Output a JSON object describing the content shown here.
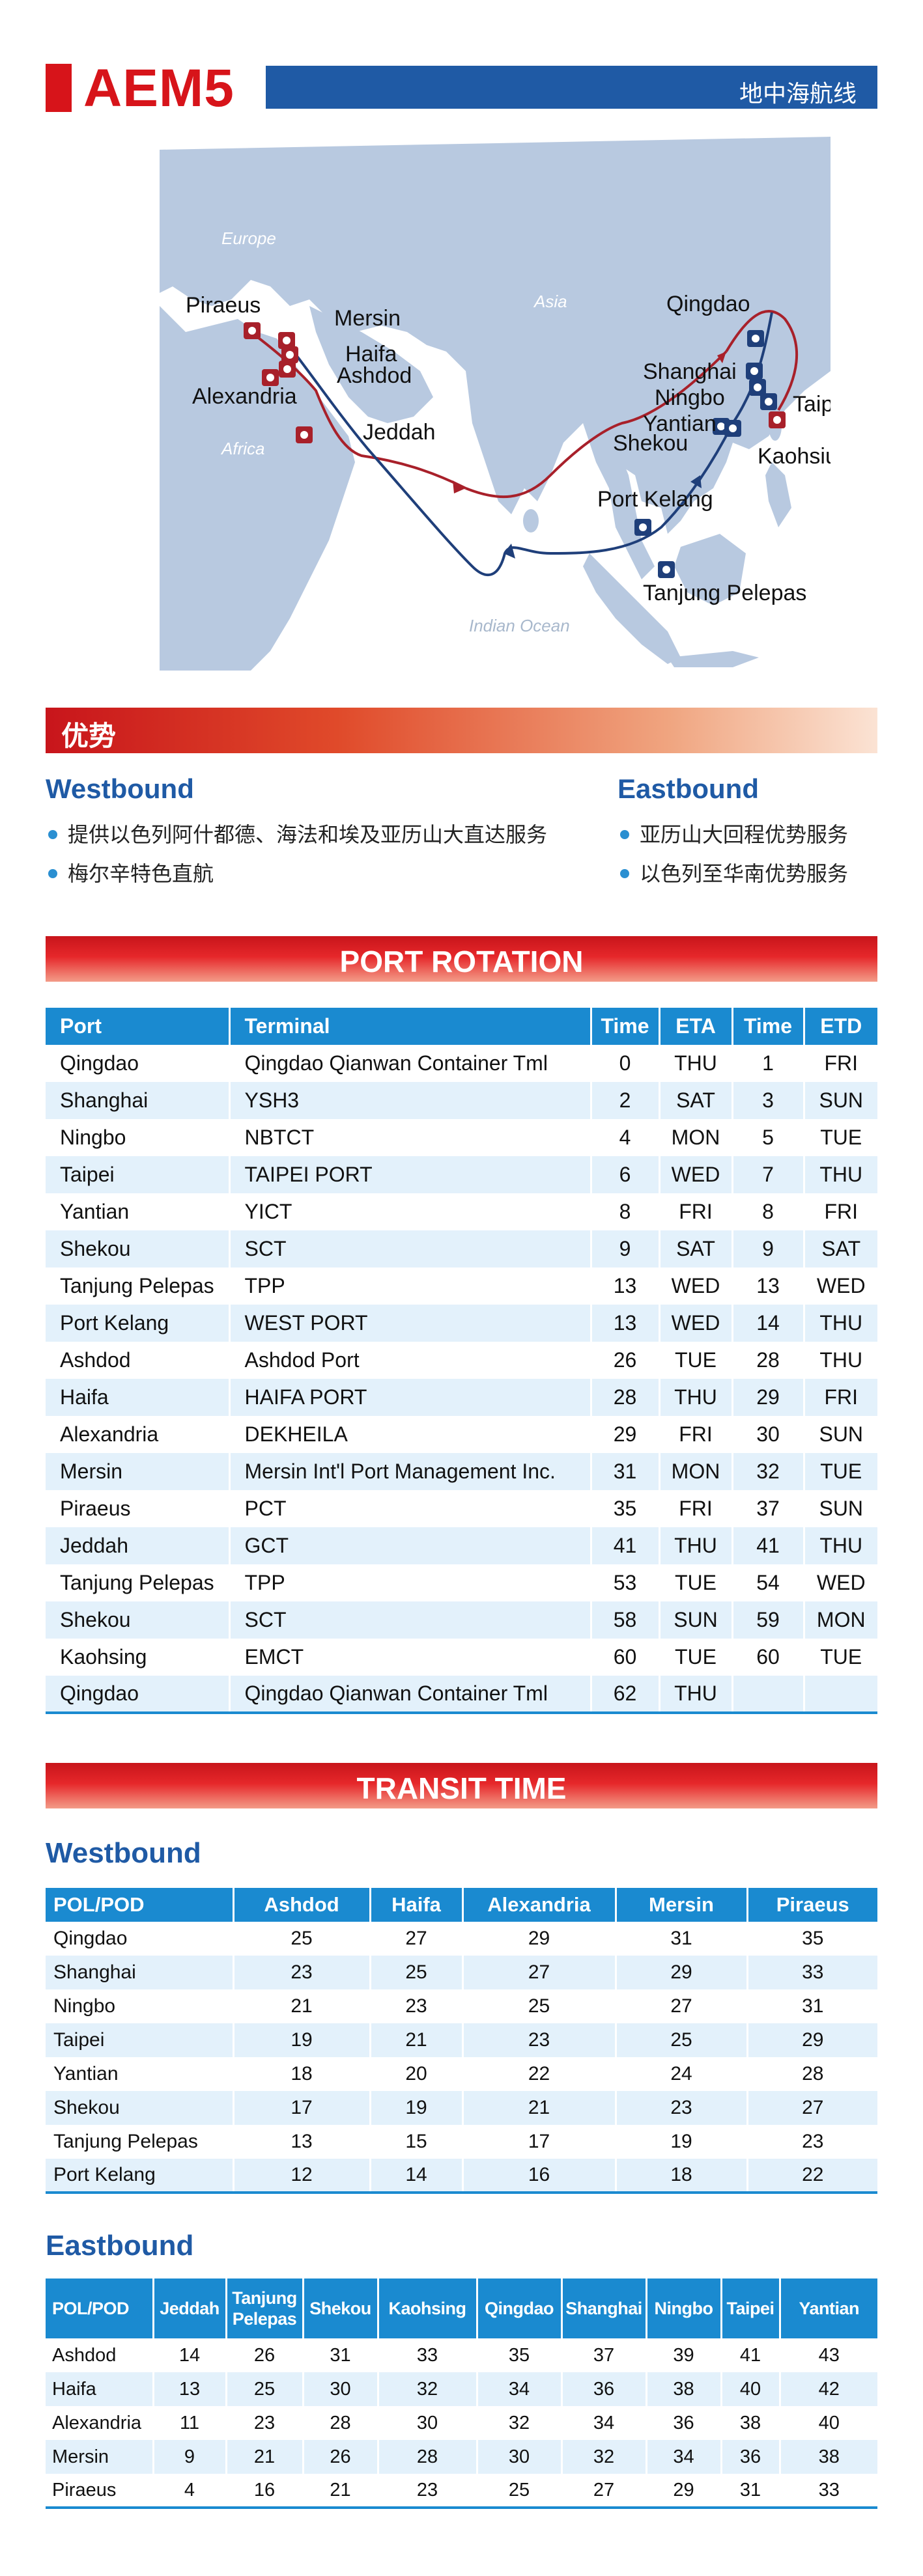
{
  "header": {
    "code": "AEM5",
    "subtitle": "地中海航线"
  },
  "map": {
    "regions": {
      "europe": "Europe",
      "asia": "Asia",
      "africa": "Africa",
      "ocean": "Indian Ocean"
    },
    "ports": {
      "piraeus": "Piraeus",
      "mersin": "Mersin",
      "haifa": "Haifa",
      "ashdod": "Ashdod",
      "alexandria": "Alexandria",
      "jeddah": "Jeddah",
      "qingdao": "Qingdao",
      "shanghai": "Shanghai",
      "ningbo": "Ningbo",
      "taipei": "Taipei",
      "yantian": "Yantian",
      "shekou": "Shekou",
      "kaohsiung": "Kaohsiung",
      "port_kelang": "Port Kelang",
      "tanjung_pelepas": "Tanjung Pelepas"
    },
    "colors": {
      "land": "#b8c9e0",
      "westbound_route": "#1f3f7a",
      "eastbound_route": "#a8202a",
      "marker_west": "#1f3f7a",
      "marker_east": "#a8202a"
    }
  },
  "advantages": {
    "title": "优势",
    "westbound": {
      "title": "Westbound",
      "items": [
        "提供以色列阿什都德、海法和埃及亚历山大直达服务",
        "梅尔辛特色直航"
      ]
    },
    "eastbound": {
      "title": "Eastbound",
      "items": [
        "亚历山大回程优势服务",
        "以色列至华南优势服务"
      ]
    }
  },
  "port_rotation": {
    "title": "PORT ROTATION",
    "headers": [
      "Port",
      "Terminal",
      "Time",
      "ETA",
      "Time",
      "ETD"
    ],
    "rows": [
      [
        "Qingdao",
        "Qingdao Qianwan Container Tml",
        "0",
        "THU",
        "1",
        "FRI"
      ],
      [
        "Shanghai",
        "YSH3",
        "2",
        "SAT",
        "3",
        "SUN"
      ],
      [
        "Ningbo",
        "NBTCT",
        "4",
        "MON",
        "5",
        "TUE"
      ],
      [
        "Taipei",
        "TAIPEI PORT",
        "6",
        "WED",
        "7",
        "THU"
      ],
      [
        "Yantian",
        "YICT",
        "8",
        "FRI",
        "8",
        "FRI"
      ],
      [
        "Shekou",
        "SCT",
        "9",
        "SAT",
        "9",
        "SAT"
      ],
      [
        "Tanjung Pelepas",
        "TPP",
        "13",
        "WED",
        "13",
        "WED"
      ],
      [
        "Port Kelang",
        "WEST PORT",
        "13",
        "WED",
        "14",
        "THU"
      ],
      [
        "Ashdod",
        "Ashdod Port",
        "26",
        "TUE",
        "28",
        "THU"
      ],
      [
        "Haifa",
        "HAIFA PORT",
        "28",
        "THU",
        "29",
        "FRI"
      ],
      [
        "Alexandria",
        "DEKHEILA",
        "29",
        "FRI",
        "30",
        "SUN"
      ],
      [
        "Mersin",
        "Mersin Int'l Port Management Inc.",
        "31",
        "MON",
        "32",
        "TUE"
      ],
      [
        "Piraeus",
        "PCT",
        "35",
        "FRI",
        "37",
        "SUN"
      ],
      [
        "Jeddah",
        "GCT",
        "41",
        "THU",
        "41",
        "THU"
      ],
      [
        "Tanjung Pelepas",
        "TPP",
        "53",
        "TUE",
        "54",
        "WED"
      ],
      [
        "Shekou",
        "SCT",
        "58",
        "SUN",
        "59",
        "MON"
      ],
      [
        "Kaohsing",
        "EMCT",
        "60",
        "TUE",
        "60",
        "TUE"
      ],
      [
        "Qingdao",
        "Qingdao Qianwan Container Tml",
        "62",
        "THU",
        "",
        ""
      ]
    ]
  },
  "transit_time": {
    "title": "TRANSIT TIME",
    "westbound": {
      "title": "Westbound",
      "headers": [
        "POL/POD",
        "Ashdod",
        "Haifa",
        "Alexandria",
        "Mersin",
        "Piraeus"
      ],
      "rows": [
        [
          "Qingdao",
          "25",
          "27",
          "29",
          "31",
          "35"
        ],
        [
          "Shanghai",
          "23",
          "25",
          "27",
          "29",
          "33"
        ],
        [
          "Ningbo",
          "21",
          "23",
          "25",
          "27",
          "31"
        ],
        [
          "Taipei",
          "19",
          "21",
          "23",
          "25",
          "29"
        ],
        [
          "Yantian",
          "18",
          "20",
          "22",
          "24",
          "28"
        ],
        [
          "Shekou",
          "17",
          "19",
          "21",
          "23",
          "27"
        ],
        [
          "Tanjung Pelepas",
          "13",
          "15",
          "17",
          "19",
          "23"
        ],
        [
          "Port Kelang",
          "12",
          "14",
          "16",
          "18",
          "22"
        ]
      ]
    },
    "eastbound": {
      "title": "Eastbound",
      "headers": [
        "POL/POD",
        "Jeddah",
        "Tanjung Pelepas",
        "Shekou",
        "Kaohsing",
        "Qingdao",
        "Shanghai",
        "Ningbo",
        "Taipei",
        "Yantian"
      ],
      "rows": [
        [
          "Ashdod",
          "14",
          "26",
          "31",
          "33",
          "35",
          "37",
          "39",
          "41",
          "43"
        ],
        [
          "Haifa",
          "13",
          "25",
          "30",
          "32",
          "34",
          "36",
          "38",
          "40",
          "42"
        ],
        [
          "Alexandria",
          "11",
          "23",
          "28",
          "30",
          "32",
          "34",
          "36",
          "38",
          "40"
        ],
        [
          "Mersin",
          "9",
          "21",
          "26",
          "28",
          "30",
          "32",
          "34",
          "36",
          "38"
        ],
        [
          "Piraeus",
          "4",
          "16",
          "21",
          "23",
          "25",
          "27",
          "29",
          "31",
          "33"
        ]
      ]
    }
  }
}
